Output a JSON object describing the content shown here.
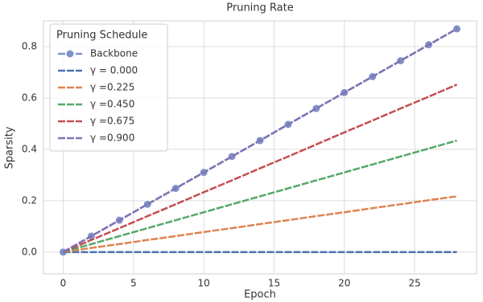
{
  "chart_data": {
    "type": "line",
    "title": "Pruning Rate",
    "x_label": "Epoch",
    "y_label": "Sparsity",
    "x": [
      0,
      2,
      4,
      6,
      8,
      10,
      12,
      14,
      16,
      18,
      20,
      22,
      24,
      26,
      28
    ],
    "series": [
      {
        "name": "Backbone",
        "color": "#7f92c8",
        "marker": true,
        "values": [
          0,
          0.062,
          0.124,
          0.186,
          0.248,
          0.31,
          0.372,
          0.434,
          0.497,
          0.559,
          0.621,
          0.683,
          0.745,
          0.807,
          0.869
        ]
      },
      {
        "name": "γ = 0.000",
        "color": "#4c72b0",
        "values": [
          0,
          0,
          0,
          0,
          0,
          0,
          0,
          0,
          0,
          0,
          0,
          0,
          0,
          0,
          0
        ]
      },
      {
        "name": "γ =0.225",
        "color": "#dd8452",
        "values": [
          0,
          0.016,
          0.031,
          0.047,
          0.062,
          0.078,
          0.093,
          0.109,
          0.124,
          0.14,
          0.155,
          0.171,
          0.186,
          0.202,
          0.217
        ]
      },
      {
        "name": "γ =0.450",
        "color": "#55a868",
        "values": [
          0,
          0.031,
          0.062,
          0.093,
          0.124,
          0.155,
          0.186,
          0.217,
          0.248,
          0.279,
          0.31,
          0.341,
          0.372,
          0.403,
          0.434
        ]
      },
      {
        "name": "γ =0.675",
        "color": "#c44e52",
        "values": [
          0,
          0.047,
          0.093,
          0.14,
          0.186,
          0.233,
          0.279,
          0.326,
          0.372,
          0.419,
          0.466,
          0.512,
          0.559,
          0.605,
          0.652
        ]
      },
      {
        "name": "γ =0.900",
        "color": "#8172b3",
        "values": [
          0,
          0.062,
          0.124,
          0.186,
          0.248,
          0.31,
          0.372,
          0.434,
          0.497,
          0.559,
          0.621,
          0.683,
          0.745,
          0.807,
          0.869
        ]
      }
    ],
    "xlim": [
      -1.4,
      29.4
    ],
    "xticks": [
      0,
      5,
      10,
      15,
      20,
      25
    ],
    "ylim": [
      -0.085,
      0.9
    ],
    "yticks": [
      {
        "value": 0,
        "label": "0.0"
      },
      0.2,
      0.4,
      0.6,
      0.8
    ],
    "grid": true,
    "legend": {
      "title": "Pruning Schedule",
      "position": "upper left"
    }
  }
}
